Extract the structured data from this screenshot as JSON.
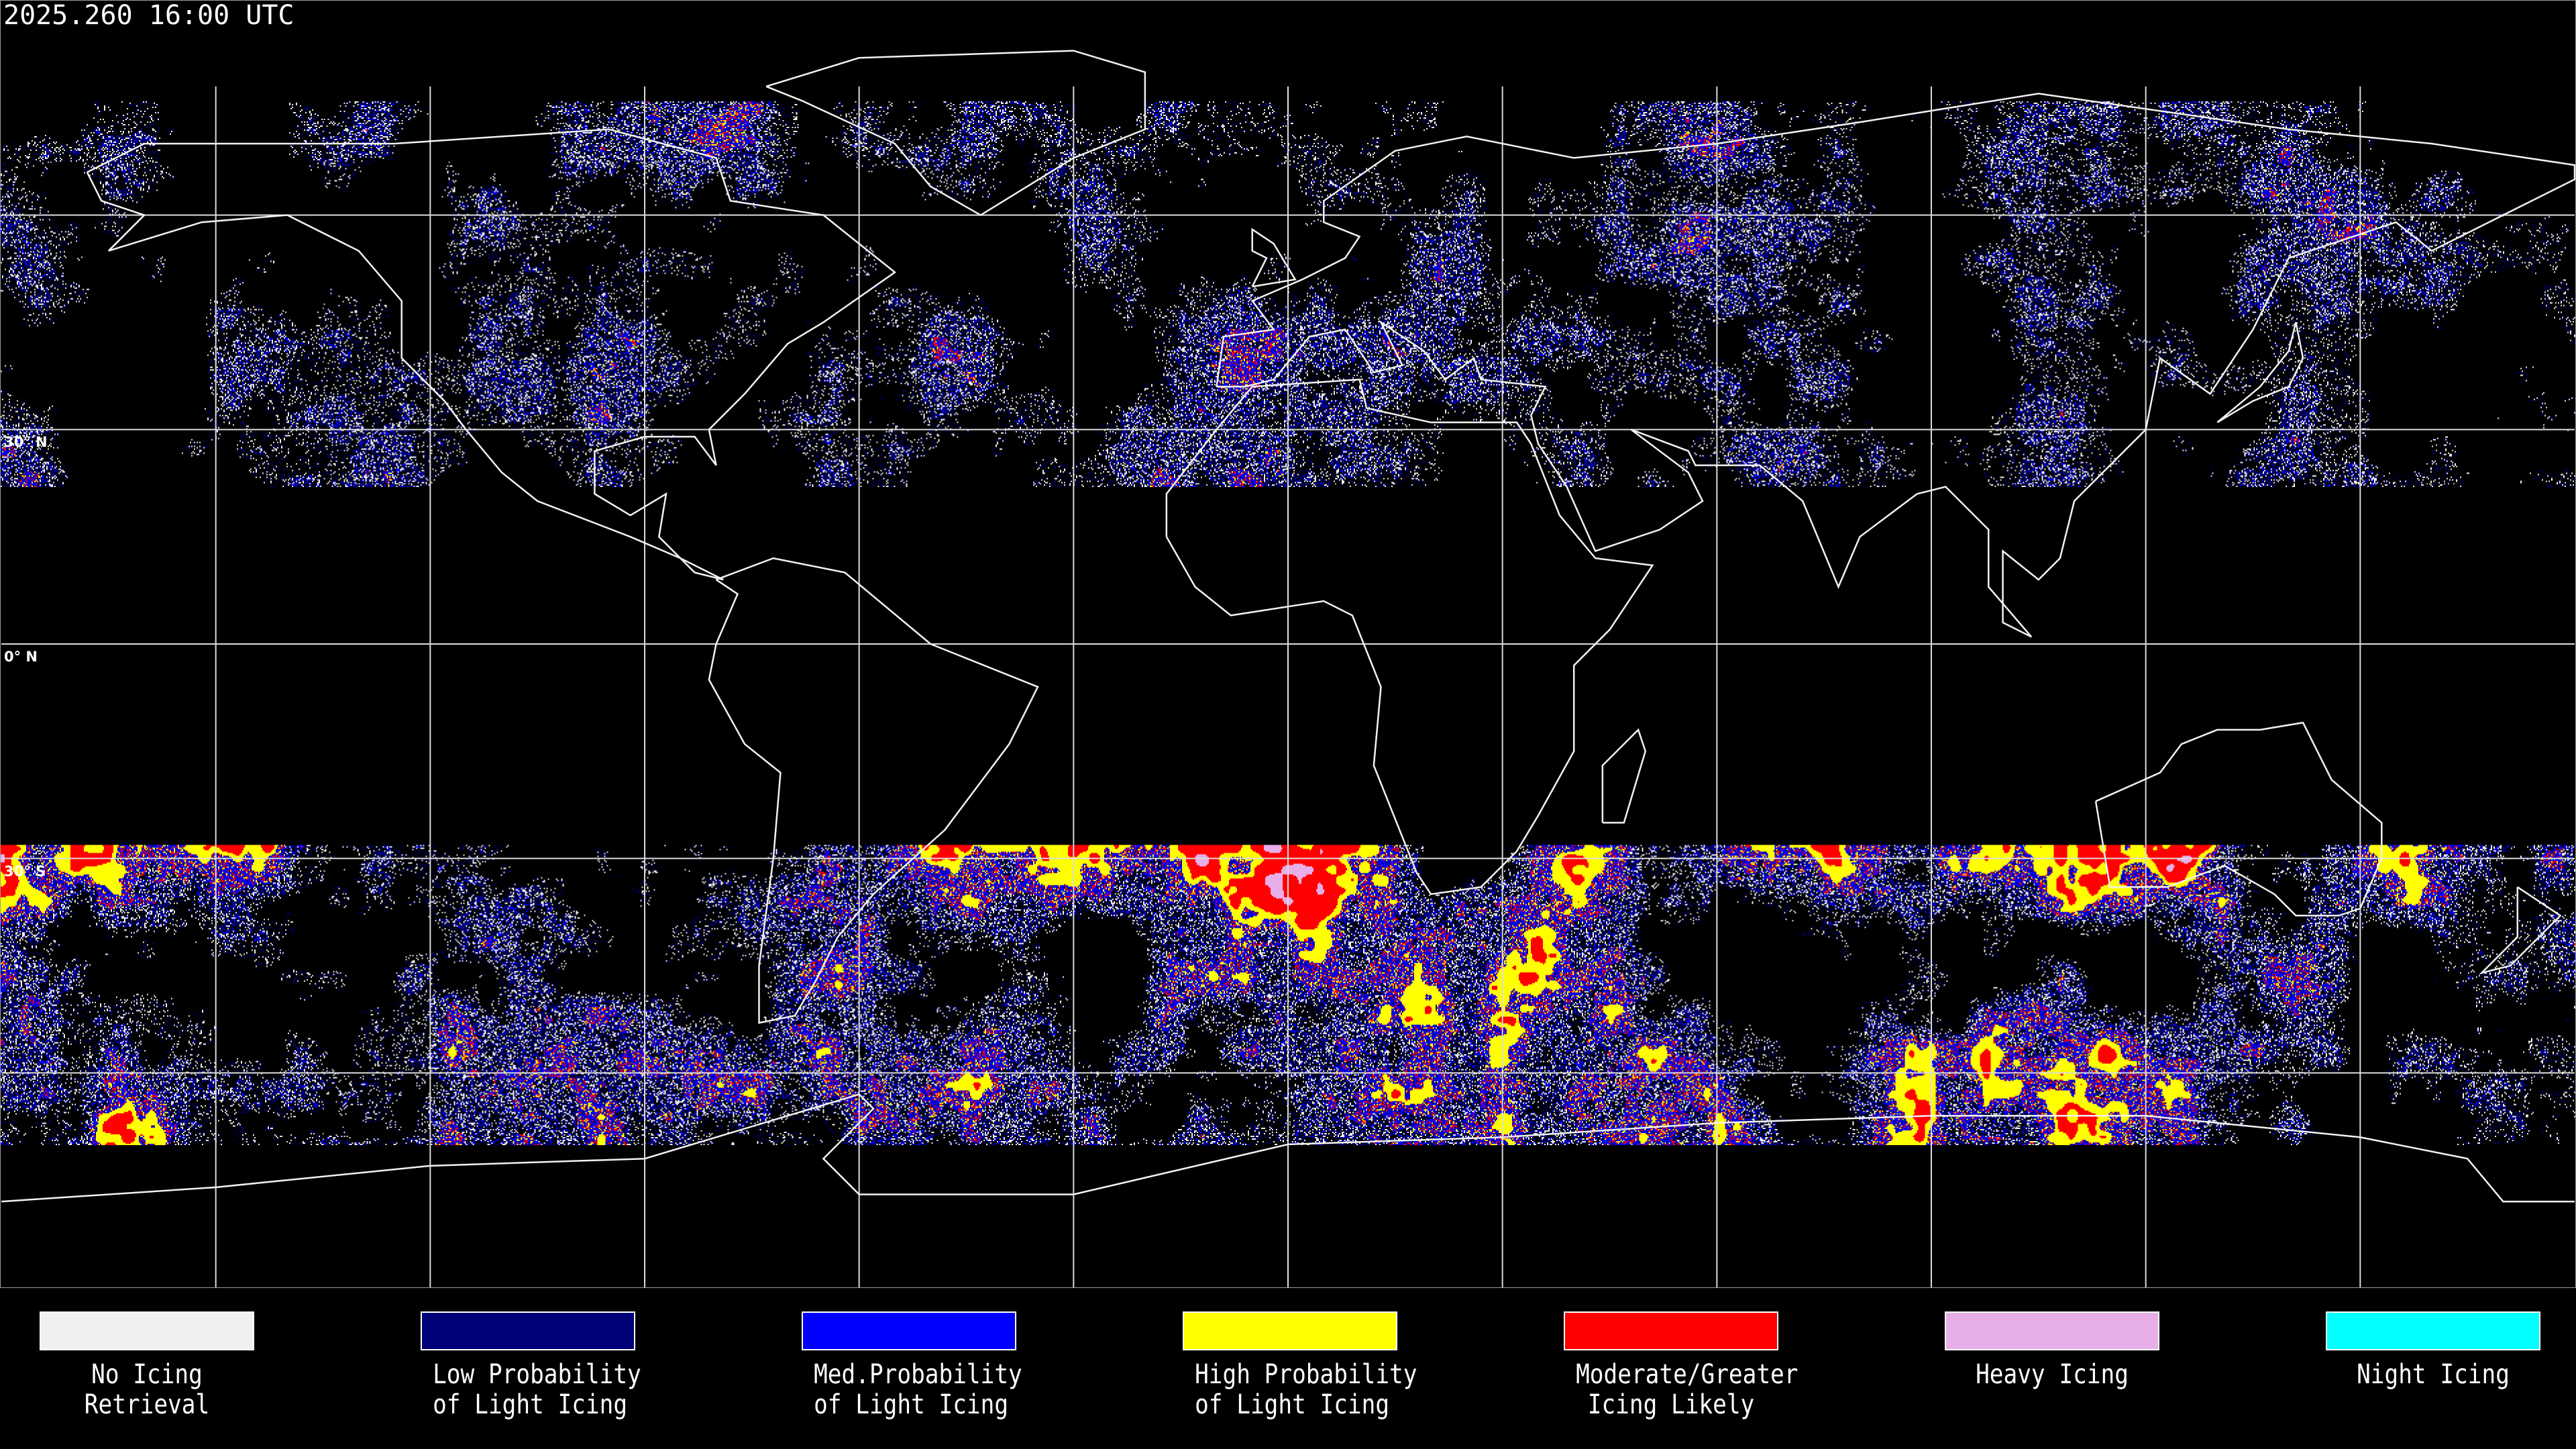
{
  "header": {
    "timestamp": "2025.260 16:00 UTC"
  },
  "map": {
    "projection": "equirectangular",
    "grid_spacing_deg": 30,
    "lat_labels": [
      "30° N",
      "0° N",
      "30° S"
    ]
  },
  "legend": {
    "items": [
      {
        "line1": "No Icing",
        "line2": "Retrieval",
        "color": "#f0f0f0"
      },
      {
        "line1": "Low Probability",
        "line2": "of Light Icing",
        "color": "#000078"
      },
      {
        "line1": "Med.Probability",
        "line2": "of Light Icing",
        "color": "#0000ff"
      },
      {
        "line1": "High Probability",
        "line2": "of Light Icing",
        "color": "#ffff00"
      },
      {
        "line1": "Moderate/Greater",
        "line2": "Icing Likely",
        "color": "#ff0000"
      },
      {
        "line1": "Heavy Icing",
        "line2": "",
        "color": "#e8aee8"
      },
      {
        "line1": "Night Icing",
        "line2": "",
        "color": "#00ffff"
      }
    ]
  }
}
